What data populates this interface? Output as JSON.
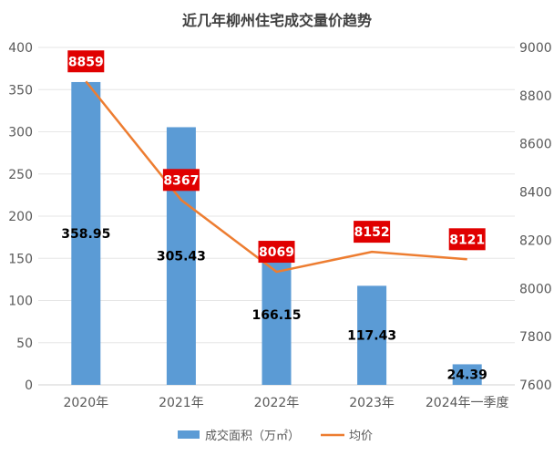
{
  "chart_data": {
    "type": "bar+line",
    "title": "近几年柳州住宅成交量价趋势",
    "categories": [
      "2020年",
      "2021年",
      "2022年",
      "2023年",
      "2024年一季度"
    ],
    "series": [
      {
        "name": "成交面积（万㎡）",
        "type": "bar",
        "axis": "left",
        "values": [
          358.95,
          305.43,
          166.15,
          117.43,
          24.39
        ],
        "color": "#5B9BD5"
      },
      {
        "name": "均价",
        "type": "line",
        "axis": "right",
        "values": [
          8859,
          8367,
          8069,
          8152,
          8121
        ],
        "color": "#ED7D31",
        "label_bg": "#E00000"
      }
    ],
    "left_axis": {
      "ylim": [
        0,
        400
      ],
      "ticks": [
        0,
        50,
        100,
        150,
        200,
        250,
        300,
        350,
        400
      ]
    },
    "right_axis": {
      "ylim": [
        7600,
        9000
      ],
      "ticks": [
        7600,
        7800,
        8000,
        8200,
        8400,
        8600,
        8800,
        9000
      ]
    },
    "grid": true,
    "legend": "bottom"
  }
}
